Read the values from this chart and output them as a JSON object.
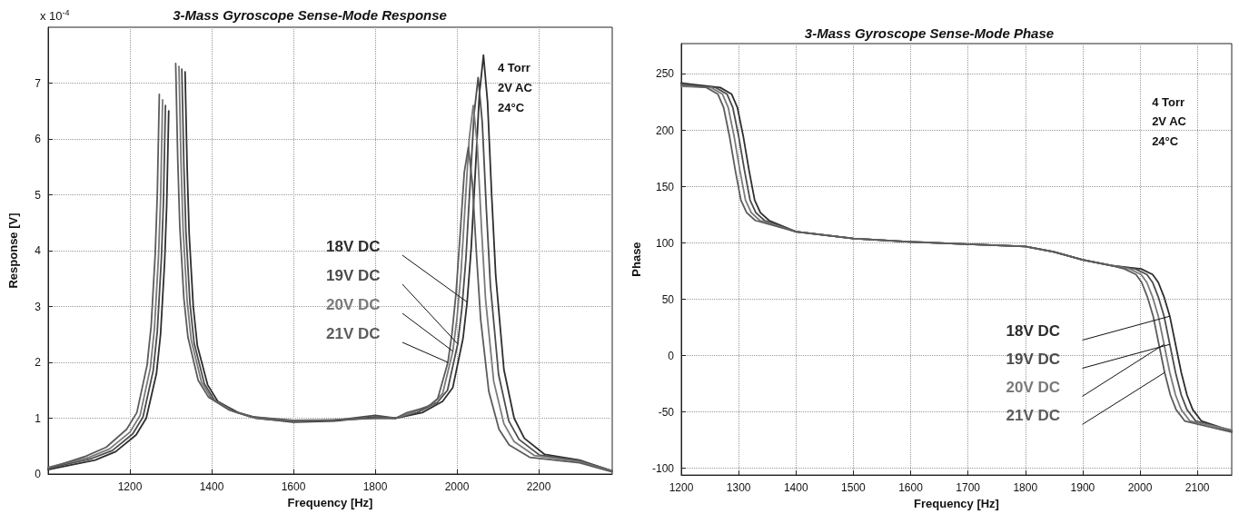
{
  "chart_data": [
    {
      "type": "line",
      "title": "3-Mass Gyroscope Sense-Mode Response",
      "xlabel": "Frequency [Hz]",
      "ylabel": "Response [V]",
      "annotations": [
        "x 10$^{-4}$",
        "4 Torr",
        "2V AC",
        "24°C"
      ],
      "xlim": [
        1000,
        2380
      ],
      "ylim": [
        0,
        8
      ],
      "xticks": [
        1200,
        1400,
        1600,
        1800,
        2000,
        2200
      ],
      "yticks": [
        0,
        1,
        2,
        3,
        4,
        5,
        6,
        7
      ],
      "grid": true,
      "marker": "none",
      "series": [
        {
          "name": "18V DC",
          "color": "#2e2e2e",
          "x": [
            1000,
            1115,
            1165,
            1215,
            1240,
            1265,
            1275,
            1285,
            1290,
            1295,
            1315,
            1335,
            1340,
            1345,
            1355,
            1365,
            1390,
            1415,
            1465,
            1515,
            1600,
            1700,
            1800,
            1850,
            1915,
            1965,
            1990,
            2015,
            2025,
            2035,
            2045,
            2055,
            2065,
            2075,
            2085,
            2095,
            2115,
            2140,
            2165,
            2215,
            2300,
            2380
          ],
          "values": [
            0.08,
            0.25,
            0.4,
            0.7,
            1.0,
            1.8,
            2.5,
            3.8,
            4.8,
            6.5,
            null,
            7.2,
            5.5,
            4.3,
            3.0,
            2.3,
            1.6,
            1.3,
            1.1,
            1.0,
            0.93,
            0.95,
            1.02,
            1.0,
            1.1,
            1.3,
            1.55,
            2.43,
            3.08,
            4.05,
            5.4,
            6.8,
            7.5,
            6.66,
            5.0,
            3.55,
            1.87,
            1.0,
            0.64,
            0.35,
            0.25,
            0.05
          ]
        },
        {
          "name": "19V DC",
          "color": "#4c4c4c",
          "x": [
            1000,
            1107,
            1157,
            1207,
            1232,
            1257,
            1267,
            1277,
            1282,
            1287,
            1307,
            1327,
            1332,
            1337,
            1347,
            1357,
            1382,
            1407,
            1457,
            1507,
            1600,
            1700,
            1800,
            1850,
            1902,
            1952,
            1977,
            2002,
            2012,
            2022,
            2032,
            2042,
            2052,
            2062,
            2072,
            2082,
            2102,
            2127,
            2152,
            2202,
            2300,
            2380
          ],
          "values": [
            0.1,
            0.28,
            0.42,
            0.72,
            1.02,
            1.85,
            2.55,
            3.85,
            4.85,
            6.6,
            null,
            7.25,
            5.55,
            4.35,
            3.05,
            2.35,
            1.62,
            1.32,
            1.12,
            1.0,
            0.94,
            0.96,
            1.05,
            1.0,
            1.1,
            1.28,
            1.5,
            2.33,
            2.95,
            3.85,
            5.15,
            6.45,
            7.1,
            6.3,
            4.75,
            3.37,
            1.78,
            0.95,
            0.62,
            0.34,
            0.24,
            0.06
          ]
        },
        {
          "name": "20V DC",
          "color": "#7a7a7a",
          "x": [
            1000,
            1100,
            1150,
            1200,
            1225,
            1250,
            1260,
            1270,
            1275,
            1280,
            1300,
            1320,
            1325,
            1330,
            1340,
            1350,
            1375,
            1400,
            1450,
            1500,
            1600,
            1700,
            1800,
            1850,
            1890,
            1940,
            1965,
            1990,
            2000,
            2010,
            2020,
            2030,
            2040,
            2050,
            2060,
            2070,
            2090,
            2115,
            2140,
            2190,
            2300,
            2380
          ],
          "values": [
            0.12,
            0.3,
            0.45,
            0.75,
            1.05,
            1.9,
            2.6,
            3.9,
            4.9,
            6.7,
            null,
            7.3,
            5.6,
            4.4,
            3.1,
            2.4,
            1.65,
            1.35,
            1.13,
            1.02,
            0.95,
            0.97,
            1.0,
            1.0,
            1.1,
            1.25,
            1.44,
            2.2,
            2.78,
            3.6,
            4.8,
            6.0,
            6.6,
            5.88,
            4.42,
            3.14,
            1.66,
            0.9,
            0.58,
            0.33,
            0.22,
            0.05
          ]
        },
        {
          "name": "21V DC",
          "color": "#5c5c5c",
          "x": [
            1000,
            1092,
            1142,
            1192,
            1217,
            1242,
            1252,
            1262,
            1267,
            1272,
            1292,
            1312,
            1317,
            1322,
            1332,
            1342,
            1367,
            1392,
            1442,
            1492,
            1600,
            1700,
            1800,
            1850,
            1878,
            1928,
            1953,
            1978,
            1988,
            1998,
            2008,
            2018,
            2028,
            2038,
            2048,
            2058,
            2078,
            2103,
            2128,
            2178,
            2300,
            2380
          ],
          "values": [
            0.1,
            0.32,
            0.48,
            0.8,
            1.1,
            1.95,
            2.65,
            3.95,
            5.0,
            6.8,
            null,
            7.35,
            5.65,
            4.45,
            3.15,
            2.45,
            1.68,
            1.38,
            1.15,
            1.03,
            0.96,
            0.97,
            1.0,
            1.0,
            1.1,
            1.2,
            1.35,
            2.0,
            2.52,
            3.25,
            4.3,
            5.4,
            5.85,
            5.2,
            3.92,
            2.78,
            1.48,
            0.8,
            0.52,
            0.3,
            0.2,
            0.04
          ]
        }
      ]
    },
    {
      "type": "line",
      "title": "3-Mass Gyroscope Sense-Mode Phase",
      "xlabel": "Frequency [Hz]",
      "ylabel": "Phase",
      "annotations": [
        "4 Torr",
        "2V AC",
        "24°C"
      ],
      "xlim": [
        1200,
        2160
      ],
      "ylim": [
        -106,
        277
      ],
      "xticks": [
        1200,
        1300,
        1400,
        1500,
        1600,
        1700,
        1800,
        1900,
        2000,
        2100
      ],
      "yticks": [
        -100,
        -50,
        0,
        50,
        100,
        150,
        200,
        250
      ],
      "grid": true,
      "marker": "none",
      "series": [
        {
          "name": "18V DC",
          "color": "#2e2e2e",
          "x": [
            1200,
            1268,
            1288,
            1298,
            1308,
            1318,
            1328,
            1338,
            1353,
            1400,
            1450,
            1500,
            1600,
            1700,
            1800,
            1850,
            1900,
            1950,
            2002,
            2022,
            2032,
            2042,
            2052,
            2062,
            2072,
            2082,
            2092,
            2107,
            2160
          ],
          "values": [
            242,
            238,
            232,
            220,
            195,
            165,
            138,
            127,
            120,
            110,
            107,
            104,
            101,
            99,
            97,
            92,
            85,
            80,
            77,
            72,
            65,
            52,
            35,
            10,
            -15,
            -35,
            -48,
            -58,
            -67
          ]
        },
        {
          "name": "19V DC",
          "color": "#4c4c4c",
          "x": [
            1200,
            1260,
            1280,
            1290,
            1300,
            1310,
            1320,
            1330,
            1345,
            1400,
            1450,
            1500,
            1600,
            1700,
            1800,
            1850,
            1900,
            1950,
            1992,
            2012,
            2022,
            2032,
            2042,
            2052,
            2062,
            2072,
            2082,
            2097,
            2160
          ],
          "values": [
            240,
            238,
            232,
            220,
            195,
            165,
            138,
            127,
            120,
            110,
            107,
            104,
            101,
            99,
            97,
            92,
            85,
            80,
            77,
            72,
            65,
            52,
            35,
            10,
            -15,
            -35,
            -48,
            -58,
            -67
          ]
        },
        {
          "name": "20V DC",
          "color": "#7a7a7a",
          "x": [
            1200,
            1252,
            1272,
            1282,
            1292,
            1302,
            1312,
            1322,
            1337,
            1400,
            1450,
            1500,
            1600,
            1700,
            1800,
            1850,
            1900,
            1950,
            1982,
            2002,
            2012,
            2022,
            2032,
            2042,
            2052,
            2062,
            2072,
            2087,
            2160
          ],
          "values": [
            239,
            238,
            232,
            220,
            195,
            165,
            138,
            127,
            120,
            110,
            107,
            104,
            101,
            99,
            97,
            92,
            85,
            80,
            77,
            72,
            65,
            52,
            35,
            10,
            -15,
            -35,
            -48,
            -58,
            -66
          ]
        },
        {
          "name": "21V DC",
          "color": "#5c5c5c",
          "x": [
            1200,
            1244,
            1264,
            1274,
            1284,
            1294,
            1304,
            1314,
            1329,
            1400,
            1450,
            1500,
            1600,
            1700,
            1800,
            1850,
            1900,
            1950,
            1973,
            1993,
            2003,
            2013,
            2023,
            2033,
            2043,
            2053,
            2063,
            2078,
            2160
          ],
          "values": [
            241,
            238,
            232,
            220,
            195,
            165,
            138,
            127,
            120,
            110,
            107,
            104,
            101,
            99,
            97,
            92,
            85,
            80,
            77,
            72,
            65,
            52,
            35,
            10,
            -15,
            -35,
            -48,
            -58,
            -68
          ]
        }
      ]
    }
  ]
}
